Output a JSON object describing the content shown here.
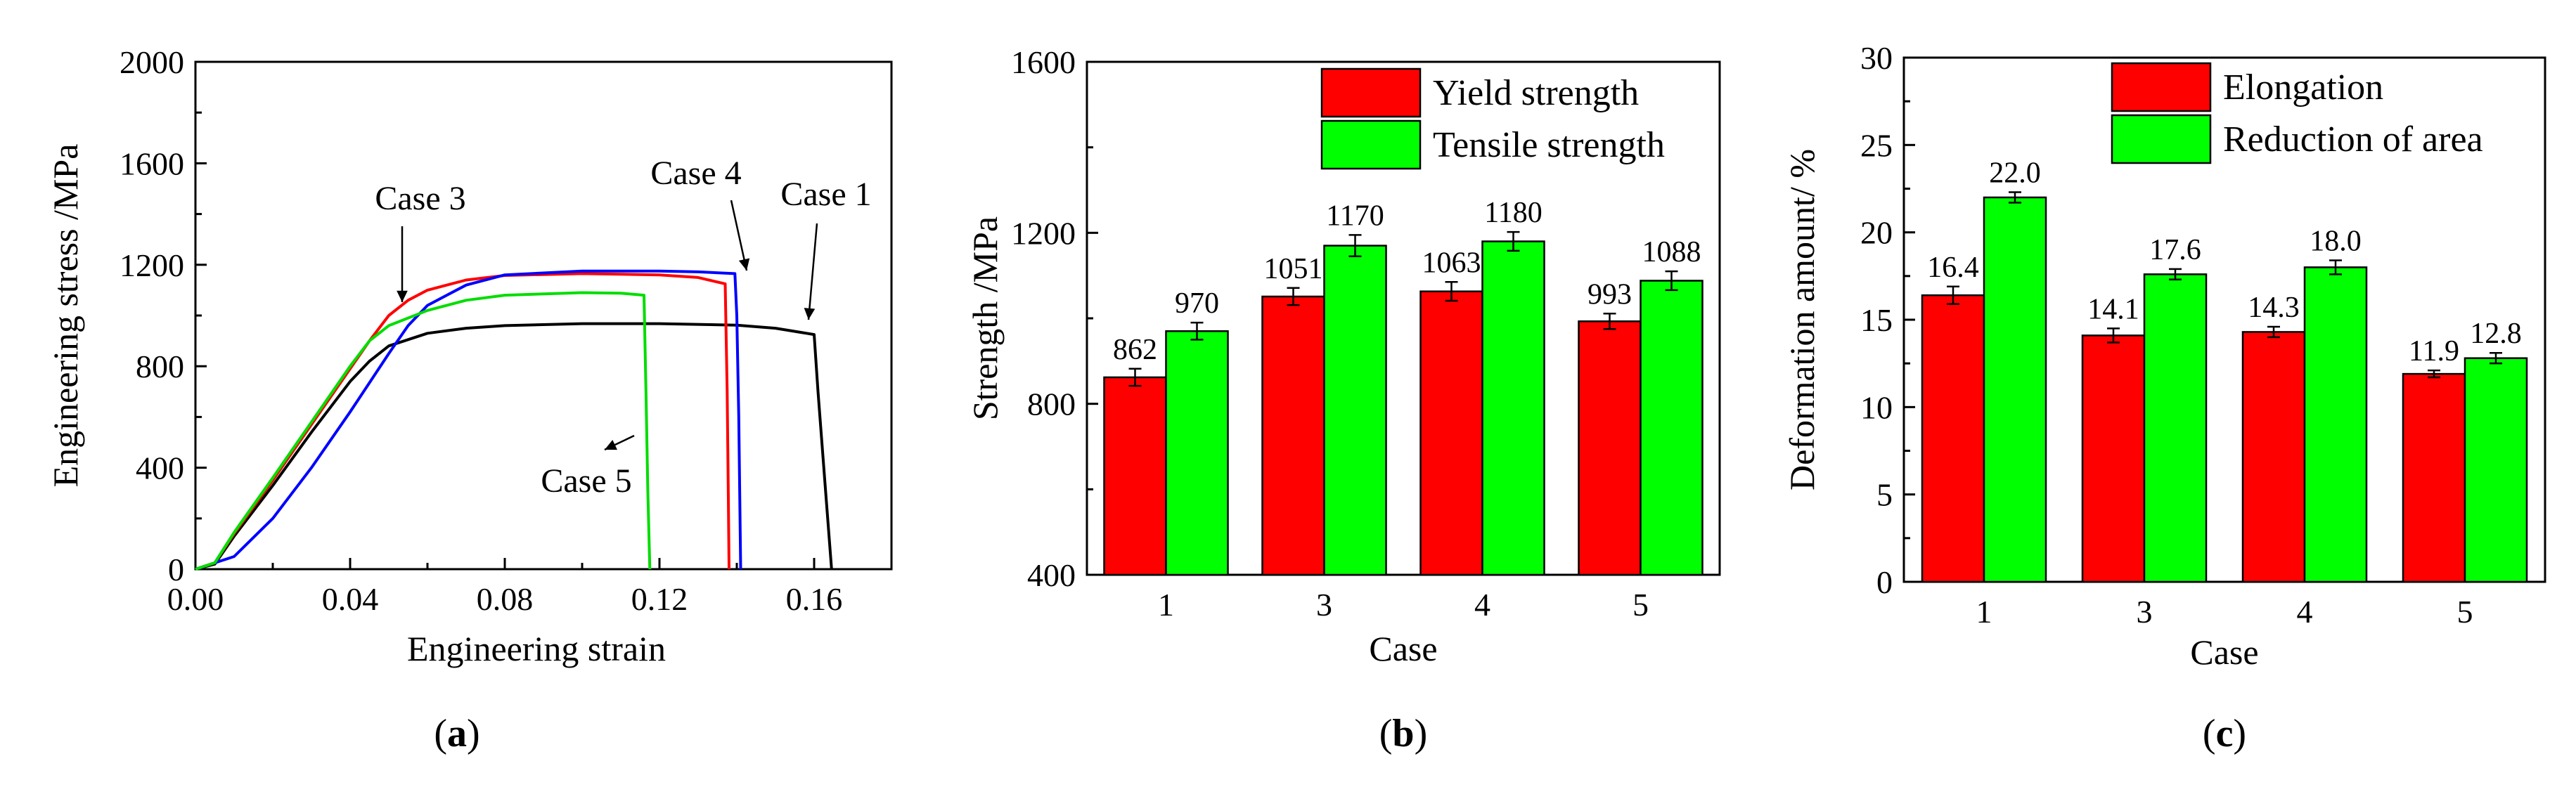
{
  "chart_data": [
    {
      "type": "line",
      "panel_label": "a",
      "xlabel": "Engineering strain",
      "ylabel": "Engineering stress /MPa",
      "xlim": [
        0,
        0.18
      ],
      "ylim": [
        0,
        2000
      ],
      "x_ticks": [
        "0.00",
        "0.04",
        "0.08",
        "0.12",
        "0.16"
      ],
      "x_tick_values": [
        0,
        0.04,
        0.08,
        0.12,
        0.16
      ],
      "y_ticks": [
        "0",
        "400",
        "800",
        "1200",
        "1600",
        "2000"
      ],
      "y_tick_values": [
        0,
        400,
        800,
        1200,
        1600,
        2000
      ],
      "series": [
        {
          "name": "Case 1",
          "color": "#000000",
          "points": [
            [
              0.0,
              0
            ],
            [
              0.005,
              20
            ],
            [
              0.01,
              130
            ],
            [
              0.02,
              330
            ],
            [
              0.03,
              540
            ],
            [
              0.04,
              740
            ],
            [
              0.045,
              820
            ],
            [
              0.05,
              880
            ],
            [
              0.06,
              930
            ],
            [
              0.07,
              950
            ],
            [
              0.08,
              960
            ],
            [
              0.1,
              968
            ],
            [
              0.12,
              968
            ],
            [
              0.14,
              962
            ],
            [
              0.15,
              950
            ],
            [
              0.16,
              925
            ],
            [
              0.161,
              700
            ],
            [
              0.163,
              300
            ],
            [
              0.1645,
              0
            ]
          ]
        },
        {
          "name": "Case 3",
          "color": "#ff0000",
          "points": [
            [
              0.0,
              0
            ],
            [
              0.005,
              25
            ],
            [
              0.01,
              140
            ],
            [
              0.02,
              350
            ],
            [
              0.03,
              570
            ],
            [
              0.04,
              790
            ],
            [
              0.045,
              900
            ],
            [
              0.05,
              1000
            ],
            [
              0.055,
              1060
            ],
            [
              0.06,
              1100
            ],
            [
              0.07,
              1140
            ],
            [
              0.08,
              1158
            ],
            [
              0.1,
              1165
            ],
            [
              0.12,
              1160
            ],
            [
              0.13,
              1150
            ],
            [
              0.137,
              1125
            ],
            [
              0.1375,
              700
            ],
            [
              0.1378,
              300
            ],
            [
              0.138,
              0
            ]
          ]
        },
        {
          "name": "Case 4",
          "color": "#0000ff",
          "points": [
            [
              0.0,
              0
            ],
            [
              0.01,
              50
            ],
            [
              0.02,
              200
            ],
            [
              0.03,
              400
            ],
            [
              0.04,
              620
            ],
            [
              0.05,
              850
            ],
            [
              0.055,
              960
            ],
            [
              0.06,
              1040
            ],
            [
              0.07,
              1120
            ],
            [
              0.08,
              1160
            ],
            [
              0.1,
              1175
            ],
            [
              0.12,
              1175
            ],
            [
              0.13,
              1172
            ],
            [
              0.1395,
              1165
            ],
            [
              0.14,
              1000
            ],
            [
              0.1405,
              600
            ],
            [
              0.141,
              0
            ]
          ]
        },
        {
          "name": "Case 5",
          "color": "#00dd00",
          "points": [
            [
              0.0,
              0
            ],
            [
              0.005,
              25
            ],
            [
              0.01,
              145
            ],
            [
              0.02,
              360
            ],
            [
              0.03,
              580
            ],
            [
              0.04,
              800
            ],
            [
              0.045,
              900
            ],
            [
              0.05,
              960
            ],
            [
              0.06,
              1020
            ],
            [
              0.07,
              1060
            ],
            [
              0.08,
              1080
            ],
            [
              0.1,
              1090
            ],
            [
              0.11,
              1088
            ],
            [
              0.116,
              1080
            ],
            [
              0.1165,
              700
            ],
            [
              0.117,
              300
            ],
            [
              0.1175,
              0
            ]
          ]
        }
      ],
      "annotations": [
        "Case 3",
        "Case 4",
        "Case 1",
        "Case 5"
      ]
    },
    {
      "type": "bar",
      "panel_label": "b",
      "xlabel": "Case",
      "ylabel": "Strength /MPa",
      "ylim": [
        400,
        1600
      ],
      "y_ticks": [
        "400",
        "800",
        "1200",
        "1600"
      ],
      "y_tick_values": [
        400,
        800,
        1200,
        1600
      ],
      "categories": [
        "1",
        "3",
        "4",
        "5"
      ],
      "series": [
        {
          "name": "Yield strength",
          "color": "#ff0000",
          "values": [
            862,
            1051,
            1063,
            993
          ],
          "labels": [
            "862",
            "1051",
            "1063",
            "993"
          ],
          "errors": [
            20,
            20,
            22,
            18
          ]
        },
        {
          "name": "Tensile strength",
          "color": "#00ff00",
          "values": [
            970,
            1170,
            1180,
            1088
          ],
          "labels": [
            "970",
            "1170",
            "1180",
            "1088"
          ],
          "errors": [
            20,
            25,
            22,
            22
          ]
        }
      ]
    },
    {
      "type": "bar",
      "panel_label": "c",
      "xlabel": "Case",
      "ylabel": "Deformation amount/ %",
      "ylim": [
        0,
        30
      ],
      "y_ticks": [
        "0",
        "5",
        "10",
        "15",
        "20",
        "25",
        "30"
      ],
      "y_tick_values": [
        0,
        5,
        10,
        15,
        20,
        25,
        30
      ],
      "categories": [
        "1",
        "3",
        "4",
        "5"
      ],
      "series": [
        {
          "name": "Elongation",
          "color": "#ff0000",
          "values": [
            16.4,
            14.1,
            14.3,
            11.9
          ],
          "labels": [
            "16.4",
            "14.1",
            "14.3",
            "11.9"
          ],
          "errors": [
            0.5,
            0.4,
            0.3,
            0.2
          ]
        },
        {
          "name": "Reduction of area",
          "color": "#00ff00",
          "values": [
            22.0,
            17.6,
            18.0,
            12.8
          ],
          "labels": [
            "22.0",
            "17.6",
            "18.0",
            "12.8"
          ],
          "errors": [
            0.3,
            0.3,
            0.4,
            0.3
          ]
        }
      ]
    }
  ]
}
